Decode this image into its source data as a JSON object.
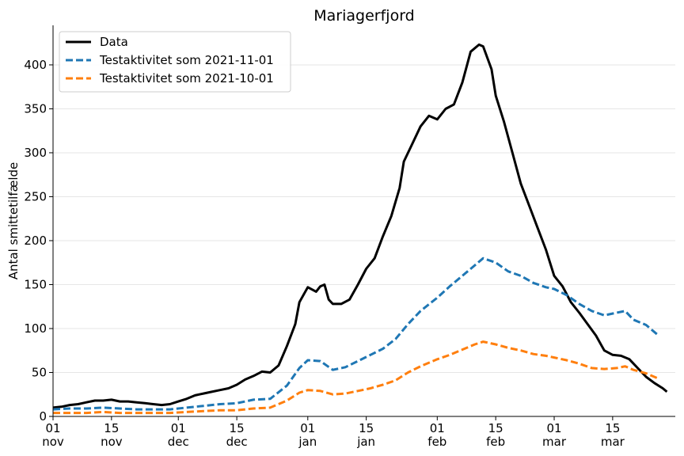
{
  "chart_data": {
    "type": "line",
    "title": "Mariagerfjord",
    "xlabel": "",
    "ylabel": "Antal smittetilfælde",
    "ylim": [
      0,
      445
    ],
    "yticks": [
      0,
      50,
      100,
      150,
      200,
      250,
      300,
      350,
      400
    ],
    "xlim": [
      "2021-11-01",
      "2022-03-30"
    ],
    "xticks": [
      {
        "date": "2021-11-01",
        "line1": "01",
        "line2": "nov"
      },
      {
        "date": "2021-11-15",
        "line1": "15",
        "line2": "nov"
      },
      {
        "date": "2021-12-01",
        "line1": "01",
        "line2": "dec"
      },
      {
        "date": "2021-12-15",
        "line1": "15",
        "line2": "dec"
      },
      {
        "date": "2022-01-01",
        "line1": "01",
        "line2": "jan"
      },
      {
        "date": "2022-01-15",
        "line1": "15",
        "line2": "jan"
      },
      {
        "date": "2022-02-01",
        "line1": "01",
        "line2": "feb"
      },
      {
        "date": "2022-02-15",
        "line1": "15",
        "line2": "feb"
      },
      {
        "date": "2022-03-01",
        "line1": "01",
        "line2": "mar"
      },
      {
        "date": "2022-03-15",
        "line1": "15",
        "line2": "mar"
      }
    ],
    "grid": "horizontal",
    "legend_position": "top-left",
    "series": [
      {
        "name": "Data",
        "color": "#000000",
        "style": "solid",
        "points": [
          [
            "2021-11-01",
            10
          ],
          [
            "2021-11-03",
            11
          ],
          [
            "2021-11-05",
            13
          ],
          [
            "2021-11-07",
            14
          ],
          [
            "2021-11-09",
            16
          ],
          [
            "2021-11-11",
            18
          ],
          [
            "2021-11-13",
            18
          ],
          [
            "2021-11-15",
            19
          ],
          [
            "2021-11-17",
            17
          ],
          [
            "2021-11-19",
            17
          ],
          [
            "2021-11-21",
            16
          ],
          [
            "2021-11-23",
            15
          ],
          [
            "2021-11-25",
            14
          ],
          [
            "2021-11-27",
            13
          ],
          [
            "2021-11-29",
            14
          ],
          [
            "2021-12-01",
            17
          ],
          [
            "2021-12-03",
            20
          ],
          [
            "2021-12-05",
            24
          ],
          [
            "2021-12-07",
            26
          ],
          [
            "2021-12-09",
            28
          ],
          [
            "2021-12-11",
            30
          ],
          [
            "2021-12-13",
            32
          ],
          [
            "2021-12-15",
            36
          ],
          [
            "2021-12-17",
            42
          ],
          [
            "2021-12-19",
            46
          ],
          [
            "2021-12-21",
            51
          ],
          [
            "2021-12-23",
            50
          ],
          [
            "2021-12-25",
            58
          ],
          [
            "2021-12-27",
            80
          ],
          [
            "2021-12-29",
            105
          ],
          [
            "2021-12-30",
            130
          ],
          [
            "2022-01-01",
            147
          ],
          [
            "2022-01-03",
            142
          ],
          [
            "2022-01-04",
            148
          ],
          [
            "2022-01-05",
            150
          ],
          [
            "2022-01-06",
            133
          ],
          [
            "2022-01-07",
            128
          ],
          [
            "2022-01-09",
            128
          ],
          [
            "2022-01-11",
            133
          ],
          [
            "2022-01-13",
            150
          ],
          [
            "2022-01-15",
            168
          ],
          [
            "2022-01-17",
            180
          ],
          [
            "2022-01-19",
            205
          ],
          [
            "2022-01-21",
            228
          ],
          [
            "2022-01-23",
            260
          ],
          [
            "2022-01-24",
            290
          ],
          [
            "2022-01-26",
            310
          ],
          [
            "2022-01-28",
            330
          ],
          [
            "2022-01-30",
            342
          ],
          [
            "2022-02-01",
            338
          ],
          [
            "2022-02-03",
            350
          ],
          [
            "2022-02-05",
            355
          ],
          [
            "2022-02-07",
            380
          ],
          [
            "2022-02-09",
            415
          ],
          [
            "2022-02-11",
            423
          ],
          [
            "2022-02-12",
            421
          ],
          [
            "2022-02-14",
            395
          ],
          [
            "2022-02-15",
            365
          ],
          [
            "2022-02-17",
            335
          ],
          [
            "2022-02-19",
            300
          ],
          [
            "2022-02-21",
            265
          ],
          [
            "2022-02-23",
            240
          ],
          [
            "2022-02-25",
            215
          ],
          [
            "2022-02-27",
            190
          ],
          [
            "2022-03-01",
            160
          ],
          [
            "2022-03-03",
            148
          ],
          [
            "2022-03-05",
            130
          ],
          [
            "2022-03-07",
            118
          ],
          [
            "2022-03-09",
            105
          ],
          [
            "2022-03-11",
            92
          ],
          [
            "2022-03-13",
            75
          ],
          [
            "2022-03-15",
            70
          ],
          [
            "2022-03-17",
            69
          ],
          [
            "2022-03-19",
            65
          ],
          [
            "2022-03-21",
            55
          ],
          [
            "2022-03-23",
            45
          ],
          [
            "2022-03-25",
            38
          ],
          [
            "2022-03-27",
            32
          ],
          [
            "2022-03-28",
            28
          ]
        ]
      },
      {
        "name": "Testaktivitet som 2021-11-01",
        "color": "#1f77b4",
        "style": "dashed",
        "points": [
          [
            "2021-11-01",
            8
          ],
          [
            "2021-11-05",
            9
          ],
          [
            "2021-11-09",
            9
          ],
          [
            "2021-11-13",
            10
          ],
          [
            "2021-11-17",
            9
          ],
          [
            "2021-11-21",
            8
          ],
          [
            "2021-11-25",
            8
          ],
          [
            "2021-11-29",
            8
          ],
          [
            "2021-12-03",
            10
          ],
          [
            "2021-12-07",
            12
          ],
          [
            "2021-12-11",
            14
          ],
          [
            "2021-12-15",
            15
          ],
          [
            "2021-12-19",
            19
          ],
          [
            "2021-12-23",
            20
          ],
          [
            "2021-12-27",
            35
          ],
          [
            "2021-12-30",
            55
          ],
          [
            "2022-01-01",
            64
          ],
          [
            "2022-01-04",
            63
          ],
          [
            "2022-01-07",
            53
          ],
          [
            "2022-01-10",
            56
          ],
          [
            "2022-01-13",
            63
          ],
          [
            "2022-01-16",
            70
          ],
          [
            "2022-01-19",
            77
          ],
          [
            "2022-01-22",
            88
          ],
          [
            "2022-01-25",
            105
          ],
          [
            "2022-01-28",
            120
          ],
          [
            "2022-02-01",
            135
          ],
          [
            "2022-02-04",
            148
          ],
          [
            "2022-02-07",
            160
          ],
          [
            "2022-02-10",
            172
          ],
          [
            "2022-02-12",
            180
          ],
          [
            "2022-02-15",
            175
          ],
          [
            "2022-02-18",
            165
          ],
          [
            "2022-02-21",
            160
          ],
          [
            "2022-02-24",
            152
          ],
          [
            "2022-02-27",
            147
          ],
          [
            "2022-03-01",
            145
          ],
          [
            "2022-03-04",
            138
          ],
          [
            "2022-03-07",
            128
          ],
          [
            "2022-03-10",
            120
          ],
          [
            "2022-03-13",
            115
          ],
          [
            "2022-03-16",
            118
          ],
          [
            "2022-03-18",
            120
          ],
          [
            "2022-03-20",
            110
          ],
          [
            "2022-03-23",
            104
          ],
          [
            "2022-03-26",
            92
          ]
        ]
      },
      {
        "name": "Testaktivitet som 2021-10-01",
        "color": "#ff7f0e",
        "style": "dashed",
        "points": [
          [
            "2021-11-01",
            4
          ],
          [
            "2021-11-05",
            4
          ],
          [
            "2021-11-09",
            4
          ],
          [
            "2021-11-13",
            5
          ],
          [
            "2021-11-17",
            4
          ],
          [
            "2021-11-21",
            4
          ],
          [
            "2021-11-25",
            4
          ],
          [
            "2021-11-29",
            4
          ],
          [
            "2021-12-03",
            5
          ],
          [
            "2021-12-07",
            6
          ],
          [
            "2021-12-11",
            7
          ],
          [
            "2021-12-15",
            7
          ],
          [
            "2021-12-19",
            9
          ],
          [
            "2021-12-23",
            10
          ],
          [
            "2021-12-27",
            18
          ],
          [
            "2021-12-30",
            27
          ],
          [
            "2022-01-01",
            30
          ],
          [
            "2022-01-04",
            29
          ],
          [
            "2022-01-07",
            25
          ],
          [
            "2022-01-10",
            26
          ],
          [
            "2022-01-13",
            29
          ],
          [
            "2022-01-16",
            32
          ],
          [
            "2022-01-19",
            36
          ],
          [
            "2022-01-22",
            41
          ],
          [
            "2022-01-25",
            50
          ],
          [
            "2022-01-28",
            57
          ],
          [
            "2022-02-01",
            65
          ],
          [
            "2022-02-04",
            70
          ],
          [
            "2022-02-07",
            76
          ],
          [
            "2022-02-10",
            82
          ],
          [
            "2022-02-12",
            85
          ],
          [
            "2022-02-15",
            82
          ],
          [
            "2022-02-18",
            78
          ],
          [
            "2022-02-21",
            75
          ],
          [
            "2022-02-24",
            71
          ],
          [
            "2022-02-27",
            69
          ],
          [
            "2022-03-01",
            67
          ],
          [
            "2022-03-04",
            64
          ],
          [
            "2022-03-07",
            60
          ],
          [
            "2022-03-10",
            55
          ],
          [
            "2022-03-13",
            54
          ],
          [
            "2022-03-16",
            55
          ],
          [
            "2022-03-18",
            57
          ],
          [
            "2022-03-20",
            53
          ],
          [
            "2022-03-23",
            49
          ],
          [
            "2022-03-26",
            43
          ]
        ]
      }
    ]
  }
}
